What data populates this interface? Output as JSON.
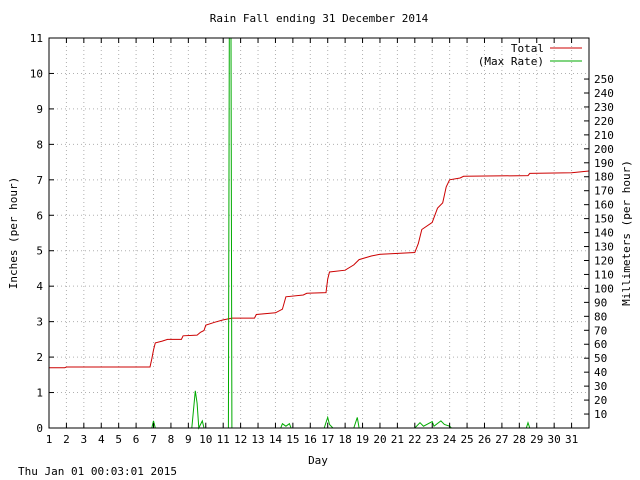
{
  "chart_data": {
    "type": "line",
    "title": "Rain Fall ending 31 December 2014",
    "xlabel": "Day",
    "ylabel": "Inches (per hour)",
    "y2label": "Millimeters (per hour)",
    "xlim": [
      1,
      32
    ],
    "ylim": [
      0,
      11
    ],
    "y2lim": [
      0,
      279.4
    ],
    "x_ticks": [
      "1",
      "2",
      "3",
      "4",
      "5",
      "6",
      "7",
      "8",
      "9",
      "10",
      "11",
      "12",
      "13",
      "14",
      "15",
      "16",
      "17",
      "18",
      "19",
      "20",
      "21",
      "22",
      "23",
      "24",
      "25",
      "26",
      "27",
      "28",
      "29",
      "30",
      "31"
    ],
    "y_ticks": [
      "0",
      "1",
      "2",
      "3",
      "4",
      "5",
      "6",
      "7",
      "8",
      "9",
      "10",
      "11"
    ],
    "y2_ticks": [
      "10",
      "20",
      "30",
      "40",
      "50",
      "60",
      "70",
      "80",
      "90",
      "100",
      "110",
      "120",
      "130",
      "140",
      "150",
      "160",
      "170",
      "180",
      "190",
      "200",
      "210",
      "220",
      "230",
      "240",
      "250"
    ],
    "grid": true,
    "legend_position": "top-right",
    "series": [
      {
        "name": "Total",
        "color": "#cc0000",
        "points": [
          [
            1.0,
            1.7
          ],
          [
            1.9,
            1.7
          ],
          [
            2.0,
            1.72
          ],
          [
            6.8,
            1.72
          ],
          [
            6.9,
            1.95
          ],
          [
            7.0,
            2.2
          ],
          [
            7.1,
            2.4
          ],
          [
            7.5,
            2.45
          ],
          [
            7.8,
            2.5
          ],
          [
            8.6,
            2.5
          ],
          [
            8.7,
            2.6
          ],
          [
            9.5,
            2.62
          ],
          [
            9.7,
            2.7
          ],
          [
            9.9,
            2.75
          ],
          [
            10.0,
            2.9
          ],
          [
            10.5,
            2.98
          ],
          [
            11.0,
            3.05
          ],
          [
            11.5,
            3.1
          ],
          [
            12.8,
            3.1
          ],
          [
            12.9,
            3.2
          ],
          [
            14.0,
            3.25
          ],
          [
            14.4,
            3.35
          ],
          [
            14.6,
            3.7
          ],
          [
            15.6,
            3.75
          ],
          [
            15.8,
            3.8
          ],
          [
            16.9,
            3.82
          ],
          [
            17.0,
            4.2
          ],
          [
            17.1,
            4.4
          ],
          [
            18.0,
            4.45
          ],
          [
            18.5,
            4.6
          ],
          [
            18.8,
            4.75
          ],
          [
            19.5,
            4.85
          ],
          [
            20.0,
            4.9
          ],
          [
            22.0,
            4.95
          ],
          [
            22.2,
            5.2
          ],
          [
            22.4,
            5.6
          ],
          [
            23.0,
            5.8
          ],
          [
            23.3,
            6.2
          ],
          [
            23.6,
            6.35
          ],
          [
            23.8,
            6.8
          ],
          [
            24.0,
            7.0
          ],
          [
            24.6,
            7.05
          ],
          [
            24.8,
            7.1
          ],
          [
            28.5,
            7.12
          ],
          [
            28.6,
            7.18
          ],
          [
            31.0,
            7.2
          ],
          [
            32.0,
            7.25
          ]
        ]
      },
      {
        "name": "(Max Rate)",
        "color": "#00aa00",
        "points": [
          [
            1.0,
            0
          ],
          [
            6.9,
            0
          ],
          [
            7.0,
            0.2
          ],
          [
            7.1,
            0
          ],
          [
            9.2,
            0
          ],
          [
            9.4,
            1.05
          ],
          [
            9.5,
            0.7
          ],
          [
            9.6,
            0
          ],
          [
            9.8,
            0.2
          ],
          [
            9.9,
            0
          ],
          [
            11.3,
            0
          ],
          [
            11.35,
            11.0
          ],
          [
            11.45,
            11.0
          ],
          [
            11.5,
            0
          ],
          [
            14.3,
            0
          ],
          [
            14.4,
            0.12
          ],
          [
            14.6,
            0.05
          ],
          [
            14.8,
            0.12
          ],
          [
            14.9,
            0
          ],
          [
            16.8,
            0
          ],
          [
            17.0,
            0.3
          ],
          [
            17.1,
            0.1
          ],
          [
            17.3,
            0
          ],
          [
            18.5,
            0
          ],
          [
            18.7,
            0.3
          ],
          [
            18.8,
            0
          ],
          [
            22.0,
            0
          ],
          [
            22.3,
            0.15
          ],
          [
            22.5,
            0.05
          ],
          [
            23.0,
            0.18
          ],
          [
            23.1,
            0.05
          ],
          [
            23.5,
            0.2
          ],
          [
            23.7,
            0.1
          ],
          [
            24.0,
            0.05
          ],
          [
            24.1,
            0
          ],
          [
            28.4,
            0
          ],
          [
            28.5,
            0.15
          ],
          [
            28.6,
            0
          ],
          [
            32.0,
            0
          ]
        ]
      }
    ]
  },
  "footer": {
    "timestamp": "Thu Jan 01 00:03:01 2015"
  }
}
